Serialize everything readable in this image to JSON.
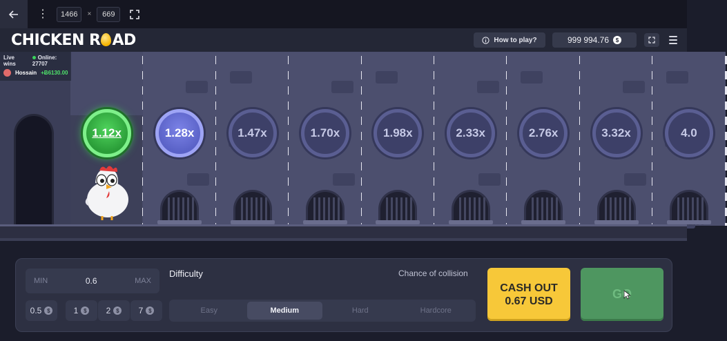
{
  "devtools": {
    "width_value": "1466",
    "times": "×",
    "height_value": "669"
  },
  "header": {
    "logo_part1": "CHICKEN R",
    "logo_part2": "AD",
    "how_to_play": "How to play?",
    "balance": "999 994.76",
    "currency_symbol": "$"
  },
  "live": {
    "label": "Live wins",
    "online_label": "Online: 27707",
    "winner_name": "Hossain",
    "winner_amount": "+Ƀ6130.00"
  },
  "multipliers": [
    "1.12x",
    "1.28x",
    "1.47x",
    "1.70x",
    "1.98x",
    "2.33x",
    "2.76x",
    "3.32x",
    "4.0"
  ],
  "bet": {
    "min_label": "MIN",
    "value": "0.6",
    "max_label": "MAX",
    "quick": [
      "0.5",
      "1",
      "2",
      "7"
    ]
  },
  "difficulty": {
    "label": "Difficulty",
    "chance_label": "Chance of collision",
    "options": [
      "Easy",
      "Medium",
      "Hard",
      "Hardcore"
    ],
    "selected": "Medium"
  },
  "actions": {
    "cashout_line1": "CASH OUT",
    "cashout_line2": "0.67 USD",
    "go": "GO"
  },
  "colors": {
    "accent_green": "#2a9d38",
    "active_lane": "#5a62c7",
    "cashout_yellow": "#f7c839",
    "go_green": "#4e9660"
  }
}
